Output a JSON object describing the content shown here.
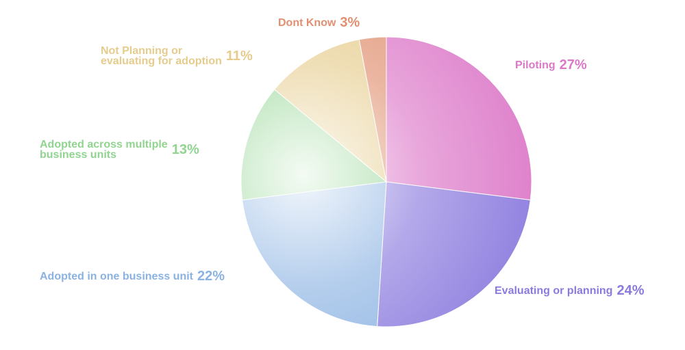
{
  "chart_data": {
    "type": "pie",
    "title": "",
    "legend": "none",
    "slices": [
      {
        "label": "Piloting",
        "value": 27,
        "display": "27%",
        "color": "#dc78c8"
      },
      {
        "label": "Evaluating or planning",
        "value": 24,
        "display": "24%",
        "color": "#8a7ade"
      },
      {
        "label": "Adopted in one business unit",
        "value": 22,
        "display": "22%",
        "color": "#8ab2e2"
      },
      {
        "label": "Adopted across multiple\nbusiness units",
        "value": 13,
        "display": "13%",
        "color": "#90d490"
      },
      {
        "label": "Not Planning or\nevaluating for adoption",
        "value": 11,
        "display": "11%",
        "color": "#e6cc8c"
      },
      {
        "label": "Dont Know",
        "value": 3,
        "display": "3%",
        "color": "#e09070"
      }
    ]
  }
}
